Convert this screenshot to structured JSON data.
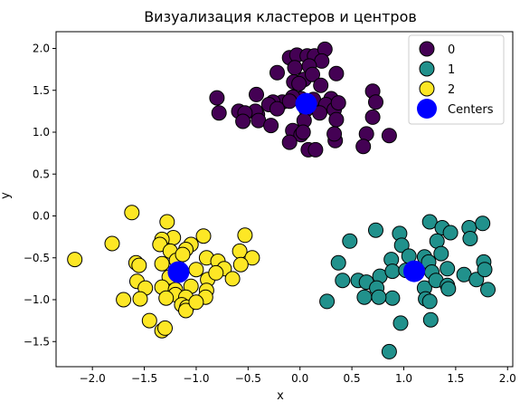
{
  "chart_data": {
    "type": "scatter",
    "title": "Визуализация кластеров и центров",
    "xlabel": "x",
    "ylabel": "y",
    "xlim": [
      -2.35,
      2.05
    ],
    "ylim": [
      -1.8,
      2.2
    ],
    "x_ticks": [
      -2.0,
      -1.5,
      -1.0,
      -0.5,
      0.0,
      0.5,
      1.0,
      1.5,
      2.0
    ],
    "x_tick_labels": [
      "−2.0",
      "−1.5",
      "−1.0",
      "−0.5",
      "0.0",
      "0.5",
      "1.0",
      "1.5",
      "2.0"
    ],
    "y_ticks": [
      -1.5,
      -1.0,
      -0.5,
      0.0,
      0.5,
      1.0,
      1.5,
      2.0
    ],
    "y_tick_labels": [
      "−1.5",
      "−1.0",
      "−0.5",
      "0.0",
      "0.5",
      "1.0",
      "1.5",
      "2.0"
    ],
    "grid": false,
    "legend_position": "top-right",
    "series": [
      {
        "name": "0",
        "color": "#440154",
        "points": [
          [
            -0.1,
            1.89
          ],
          [
            -0.03,
            1.92
          ],
          [
            0.07,
            1.91
          ],
          [
            0.14,
            1.91
          ],
          [
            0.24,
            1.99
          ],
          [
            0.21,
            1.85
          ],
          [
            -0.05,
            1.77
          ],
          [
            0.09,
            1.79
          ],
          [
            0.04,
            1.63
          ],
          [
            0.12,
            1.69
          ],
          [
            0.2,
            1.56
          ],
          [
            0.35,
            1.7
          ],
          [
            -0.22,
            1.71
          ],
          [
            -0.06,
            1.6
          ],
          [
            -0.01,
            1.58
          ],
          [
            0.01,
            1.4
          ],
          [
            -0.17,
            1.36
          ],
          [
            -0.26,
            1.36
          ],
          [
            -0.07,
            1.42
          ],
          [
            -0.42,
            1.45
          ],
          [
            -0.3,
            1.33
          ],
          [
            -0.1,
            1.37
          ],
          [
            0.06,
            1.27
          ],
          [
            0.13,
            1.39
          ],
          [
            0.3,
            1.4
          ],
          [
            0.25,
            1.33
          ],
          [
            0.33,
            1.27
          ],
          [
            0.37,
            1.35
          ],
          [
            0.19,
            1.23
          ],
          [
            0.04,
            1.14
          ],
          [
            -0.22,
            1.28
          ],
          [
            -0.41,
            1.21
          ],
          [
            -0.43,
            1.25
          ],
          [
            -0.59,
            1.25
          ],
          [
            -0.53,
            1.23
          ],
          [
            -0.55,
            1.13
          ],
          [
            -0.4,
            1.14
          ],
          [
            -0.28,
            1.08
          ],
          [
            -0.07,
            1.02
          ],
          [
            0.01,
            0.97
          ],
          [
            0.03,
            1.0
          ],
          [
            -0.1,
            0.88
          ],
          [
            0.08,
            0.79
          ],
          [
            0.15,
            0.79
          ],
          [
            0.34,
            0.9
          ],
          [
            0.33,
            0.98
          ],
          [
            0.35,
            1.15
          ],
          [
            0.7,
            1.49
          ],
          [
            0.73,
            1.36
          ],
          [
            0.7,
            1.18
          ],
          [
            0.64,
            0.98
          ],
          [
            0.61,
            0.83
          ],
          [
            0.86,
            0.96
          ],
          [
            -0.8,
            1.41
          ],
          [
            -0.78,
            1.23
          ]
        ]
      },
      {
        "name": "1",
        "color": "#21918c",
        "points": [
          [
            0.73,
            -0.17
          ],
          [
            0.96,
            -0.21
          ],
          [
            1.25,
            -0.07
          ],
          [
            1.37,
            -0.14
          ],
          [
            1.63,
            -0.14
          ],
          [
            1.76,
            -0.09
          ],
          [
            0.48,
            -0.3
          ],
          [
            0.98,
            -0.35
          ],
          [
            1.2,
            -0.49
          ],
          [
            1.32,
            -0.3
          ],
          [
            1.45,
            -0.2
          ],
          [
            1.64,
            -0.27
          ],
          [
            0.88,
            -0.52
          ],
          [
            1.05,
            -0.48
          ],
          [
            1.24,
            -0.55
          ],
          [
            1.36,
            -0.45
          ],
          [
            0.37,
            -0.56
          ],
          [
            0.41,
            -0.77
          ],
          [
            0.56,
            -0.77
          ],
          [
            0.64,
            -0.79
          ],
          [
            0.77,
            -0.72
          ],
          [
            0.89,
            -0.66
          ],
          [
            1.02,
            -0.65
          ],
          [
            1.27,
            -0.67
          ],
          [
            1.42,
            -0.63
          ],
          [
            1.58,
            -0.7
          ],
          [
            1.7,
            -0.76
          ],
          [
            1.77,
            -0.55
          ],
          [
            1.78,
            -0.64
          ],
          [
            0.74,
            -0.86
          ],
          [
            0.89,
            -0.98
          ],
          [
            1.2,
            -0.86
          ],
          [
            1.31,
            -0.77
          ],
          [
            1.42,
            -0.83
          ],
          [
            1.43,
            -0.87
          ],
          [
            1.81,
            -0.88
          ],
          [
            0.62,
            -0.97
          ],
          [
            0.76,
            -0.97
          ],
          [
            1.21,
            -0.99
          ],
          [
            1.25,
            -1.02
          ],
          [
            0.26,
            -1.02
          ],
          [
            0.97,
            -1.28
          ],
          [
            1.26,
            -1.24
          ],
          [
            0.86,
            -1.62
          ]
        ]
      },
      {
        "name": "2",
        "color": "#fde725",
        "points": [
          [
            -1.62,
            0.04
          ],
          [
            -1.28,
            -0.07
          ],
          [
            -1.22,
            -0.26
          ],
          [
            -1.33,
            -0.28
          ],
          [
            -1.05,
            -0.34
          ],
          [
            -1.1,
            -0.4
          ],
          [
            -0.93,
            -0.24
          ],
          [
            -0.53,
            -0.23
          ],
          [
            -2.17,
            -0.52
          ],
          [
            -1.81,
            -0.33
          ],
          [
            -1.58,
            -0.56
          ],
          [
            -1.55,
            -0.59
          ],
          [
            -1.35,
            -0.34
          ],
          [
            -1.25,
            -0.42
          ],
          [
            -1.19,
            -0.53
          ],
          [
            -1.13,
            -0.46
          ],
          [
            -0.9,
            -0.5
          ],
          [
            -0.79,
            -0.54
          ],
          [
            -0.58,
            -0.42
          ],
          [
            -0.46,
            -0.5
          ],
          [
            -0.73,
            -0.63
          ],
          [
            -0.57,
            -0.58
          ],
          [
            -1.33,
            -0.57
          ],
          [
            -1.0,
            -0.64
          ],
          [
            -0.89,
            -0.76
          ],
          [
            -0.81,
            -0.68
          ],
          [
            -0.65,
            -0.75
          ],
          [
            -1.57,
            -0.78
          ],
          [
            -1.26,
            -0.73
          ],
          [
            -1.33,
            -0.85
          ],
          [
            -1.2,
            -0.88
          ],
          [
            -1.05,
            -0.84
          ],
          [
            -0.9,
            -0.89
          ],
          [
            -1.49,
            -0.86
          ],
          [
            -1.2,
            -0.94
          ],
          [
            -1.1,
            -0.97
          ],
          [
            -0.91,
            -0.97
          ],
          [
            -1.14,
            -1.06
          ],
          [
            -1.09,
            -1.09
          ],
          [
            -1.1,
            -1.13
          ],
          [
            -1.7,
            -1.0
          ],
          [
            -1.54,
            -0.99
          ],
          [
            -1.29,
            -0.98
          ],
          [
            -1.45,
            -1.25
          ],
          [
            -1.33,
            -1.37
          ],
          [
            -1.3,
            -1.34
          ],
          [
            -1.0,
            -1.03
          ]
        ]
      }
    ],
    "centers": {
      "name": "Centers",
      "color": "#0000ff",
      "points": [
        [
          0.06,
          1.34
        ],
        [
          1.1,
          -0.66
        ],
        [
          -1.17,
          -0.67
        ]
      ]
    },
    "legend": [
      {
        "label": "0",
        "color": "#440154",
        "kind": "point"
      },
      {
        "label": "1",
        "color": "#21918c",
        "kind": "point"
      },
      {
        "label": "2",
        "color": "#fde725",
        "kind": "point"
      },
      {
        "label": "Centers",
        "color": "#0000ff",
        "kind": "center"
      }
    ]
  }
}
